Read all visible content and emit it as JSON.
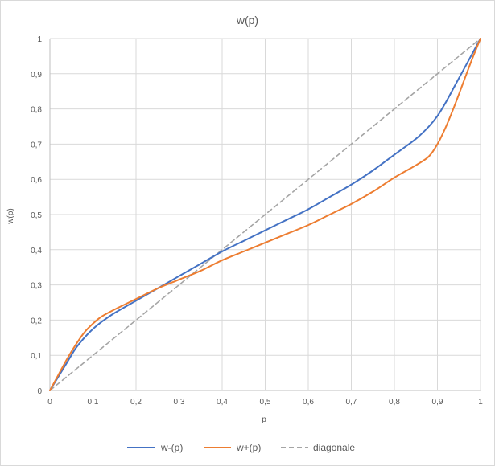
{
  "chart_data": {
    "type": "line",
    "title": "w(p)",
    "xlabel": "p",
    "ylabel": "w(p)",
    "xlim": [
      0,
      1
    ],
    "ylim": [
      0,
      1
    ],
    "xticks": [
      "0",
      "0,1",
      "0,2",
      "0,3",
      "0,4",
      "0,5",
      "0,6",
      "0,7",
      "0,8",
      "0,9",
      "1"
    ],
    "yticks": [
      "0",
      "0,1",
      "0,2",
      "0,3",
      "0,4",
      "0,5",
      "0,6",
      "0,7",
      "0,8",
      "0,9",
      "1"
    ],
    "grid": true,
    "legend_position": "bottom",
    "series": [
      {
        "name": "w-(p)",
        "color": "#4472c4",
        "dash": "solid",
        "x": [
          0,
          0.02,
          0.04,
          0.06,
          0.08,
          0.1,
          0.12,
          0.15,
          0.2,
          0.25,
          0.3,
          0.35,
          0.4,
          0.45,
          0.5,
          0.55,
          0.6,
          0.65,
          0.7,
          0.75,
          0.8,
          0.85,
          0.88,
          0.9,
          0.92,
          0.94,
          0.96,
          0.98,
          1
        ],
        "y": [
          0,
          0.04,
          0.08,
          0.12,
          0.15,
          0.175,
          0.195,
          0.22,
          0.255,
          0.29,
          0.325,
          0.36,
          0.395,
          0.425,
          0.455,
          0.485,
          0.515,
          0.55,
          0.585,
          0.625,
          0.67,
          0.715,
          0.75,
          0.78,
          0.82,
          0.865,
          0.91,
          0.955,
          1
        ]
      },
      {
        "name": "w+(p)",
        "color": "#ed7d31",
        "dash": "solid",
        "x": [
          0,
          0.02,
          0.04,
          0.06,
          0.08,
          0.1,
          0.12,
          0.15,
          0.2,
          0.25,
          0.3,
          0.35,
          0.4,
          0.45,
          0.5,
          0.55,
          0.6,
          0.65,
          0.7,
          0.75,
          0.8,
          0.85,
          0.88,
          0.9,
          0.92,
          0.94,
          0.96,
          0.98,
          1
        ],
        "y": [
          0,
          0.045,
          0.09,
          0.13,
          0.165,
          0.19,
          0.21,
          0.23,
          0.26,
          0.29,
          0.315,
          0.34,
          0.37,
          0.395,
          0.42,
          0.445,
          0.47,
          0.5,
          0.53,
          0.565,
          0.605,
          0.64,
          0.665,
          0.7,
          0.75,
          0.81,
          0.875,
          0.94,
          1
        ]
      },
      {
        "name": "diagonale",
        "color": "#a5a5a5",
        "dash": "dashed",
        "x": [
          0,
          1
        ],
        "y": [
          0,
          1
        ]
      }
    ]
  }
}
